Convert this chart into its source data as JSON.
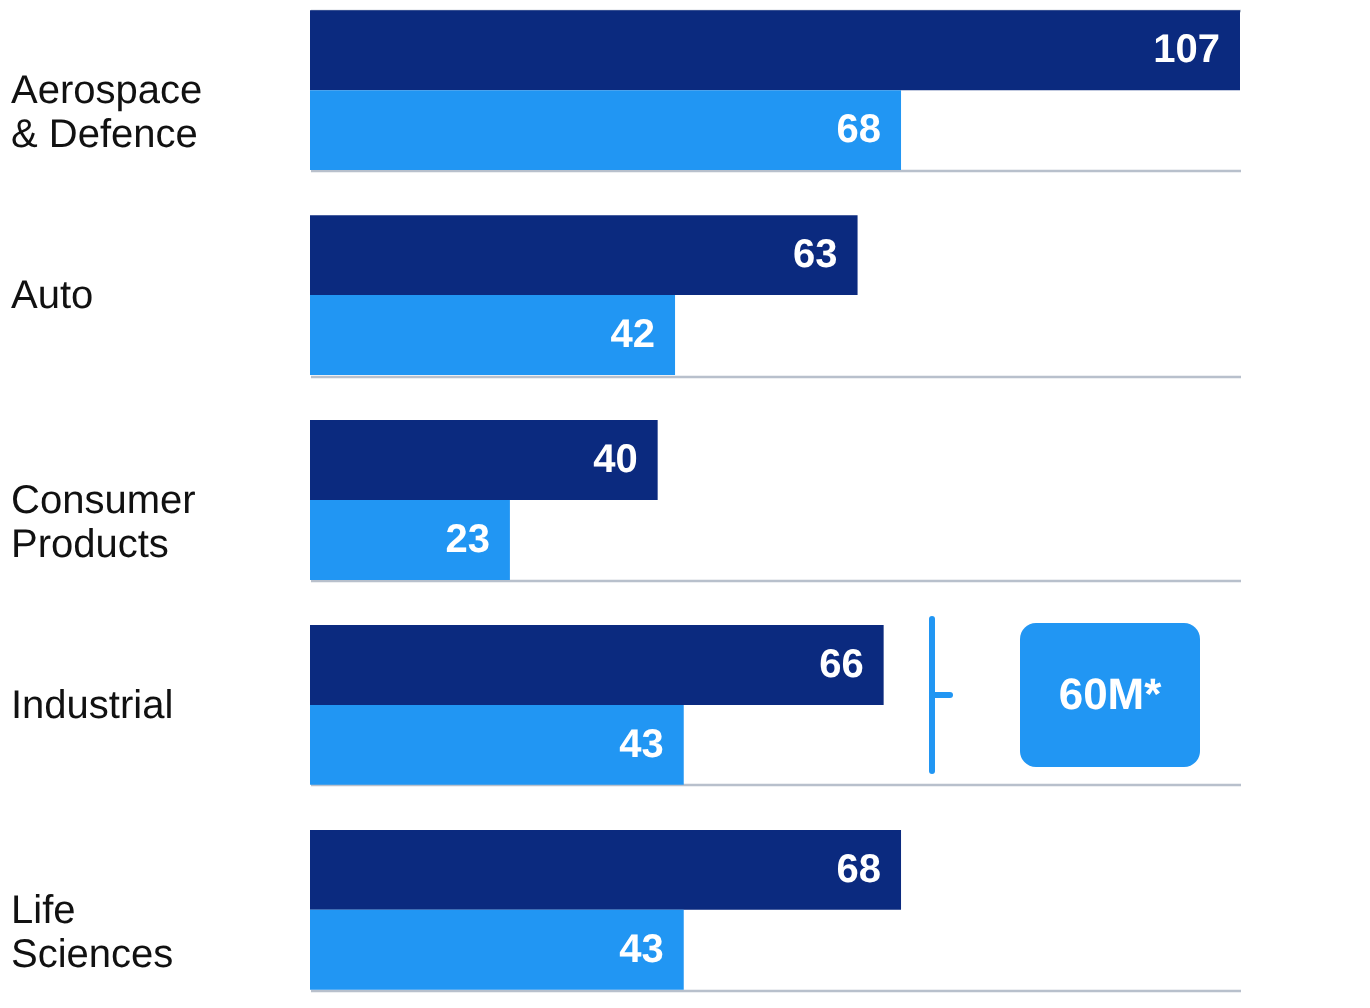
{
  "chart_data": {
    "type": "bar",
    "orientation": "horizontal",
    "categories": [
      "Aerospace & Defence",
      "Auto",
      "Consumer Products",
      "Industrial",
      "Life Sciences"
    ],
    "series": [
      {
        "color": "#0b2a7f",
        "values": [
          107,
          63,
          40,
          66,
          68
        ]
      },
      {
        "color": "#2196f3",
        "values": [
          68,
          42,
          23,
          43,
          43
        ]
      }
    ],
    "data_labels": true,
    "grid": true,
    "annotations": [
      "60M*"
    ]
  }
}
